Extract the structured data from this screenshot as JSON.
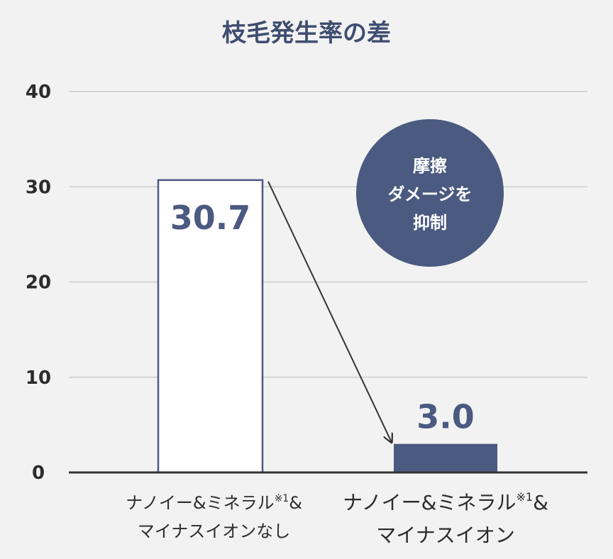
{
  "chart_data": {
    "type": "bar",
    "title": "枝毛発生率の差",
    "categories": [
      [
        "ナノイー&ミネラル※1&",
        "マイナスイオンなし"
      ],
      [
        "ナノイー&ミネラル※1&",
        "マイナスイオン"
      ]
    ],
    "values": [
      30.7,
      3.0
    ],
    "value_labels": [
      "30.7",
      "3.0"
    ],
    "ylim": [
      0,
      40
    ],
    "yticks": [
      0,
      10,
      20,
      30,
      40
    ],
    "grid": true,
    "badge": {
      "lines": [
        "摩擦",
        "ダメージを",
        "抑制"
      ]
    },
    "colors": {
      "background": "#f2f2f2",
      "accent": "#4a5a80",
      "title": "#3f4d70",
      "axis": "#333333",
      "grid": "#d4d4d4",
      "text": "#2c2c2c",
      "white_bar": "#ffffff"
    },
    "arrow": {
      "from_category": 0,
      "to_category": 1
    }
  }
}
